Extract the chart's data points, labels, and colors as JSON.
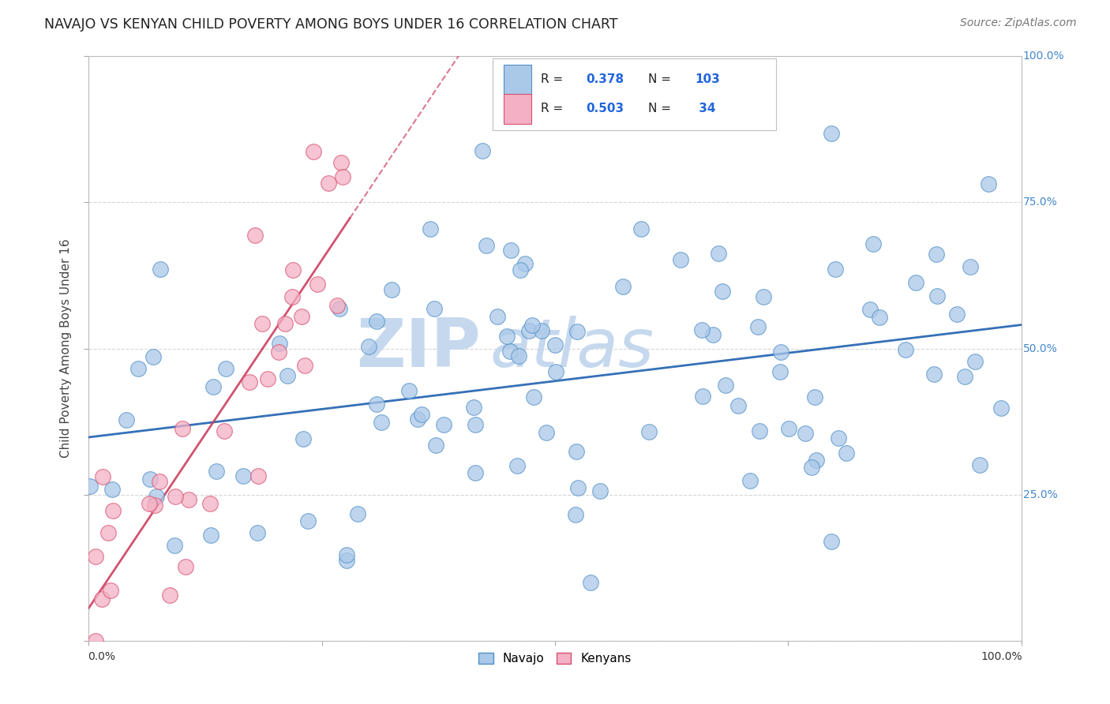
{
  "title": "NAVAJO VS KENYAN CHILD POVERTY AMONG BOYS UNDER 16 CORRELATION CHART",
  "source": "Source: ZipAtlas.com",
  "ylabel": "Child Poverty Among Boys Under 16",
  "watermark": "ZIPatlas",
  "navajo_R": 0.378,
  "navajo_N": 103,
  "kenyan_R": 0.503,
  "kenyan_N": 34,
  "navajo_color": "#aac8e8",
  "kenyan_color": "#f4b0c4",
  "navajo_edge_color": "#5090c8",
  "kenyan_edge_color": "#d85070",
  "navajo_line_color": "#2060b0",
  "kenyan_line_color": "#cc4060",
  "bg_color": "#ffffff",
  "grid_color": "#cccccc",
  "watermark_color": "#c5d8ee",
  "ytick_color": "#4488cc"
}
